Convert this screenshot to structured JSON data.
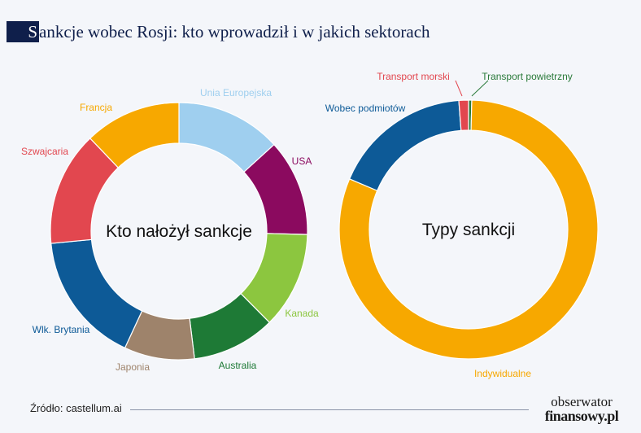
{
  "title": {
    "first_letter": "S",
    "rest": "ankcje wobec Rosji: kto wprowadził i w jakich sektorach"
  },
  "footer": {
    "source": "Źródło: castellum.ai"
  },
  "brand": {
    "line1": "obserwator",
    "line2": "finansowy.pl"
  },
  "chart_data": [
    {
      "type": "pie",
      "title": "Kto nałożył sankcje",
      "slices": [
        {
          "label": "Unia Europejska",
          "value": 12,
          "color": "#9fcfef"
        },
        {
          "label": "USA",
          "value": 11,
          "color": "#8b0a5f"
        },
        {
          "label": "Kanada",
          "value": 11,
          "color": "#8cc63f"
        },
        {
          "label": "Australia",
          "value": 9.5,
          "color": "#1e7a36"
        },
        {
          "label": "Japonia",
          "value": 8,
          "color": "#9e836b"
        },
        {
          "label": "Wlk. Brytania",
          "value": 15,
          "color": "#0d5a97"
        },
        {
          "label": "Szwajcaria",
          "value": 13,
          "color": "#e2474f"
        },
        {
          "label": "Francja",
          "value": 11,
          "color": "#f7a800"
        }
      ]
    },
    {
      "type": "pie",
      "title": "Typy sankcji",
      "slices": [
        {
          "label": "Transport powietrzny",
          "value": 0.4,
          "color": "#2a7a3a"
        },
        {
          "label": "Indywidualne",
          "value": 81,
          "color": "#f7a800"
        },
        {
          "label": "Wobec podmiotów",
          "value": 17.4,
          "color": "#0d5a97"
        },
        {
          "label": "Transport morski",
          "value": 1.2,
          "color": "#e2474f"
        }
      ]
    }
  ]
}
